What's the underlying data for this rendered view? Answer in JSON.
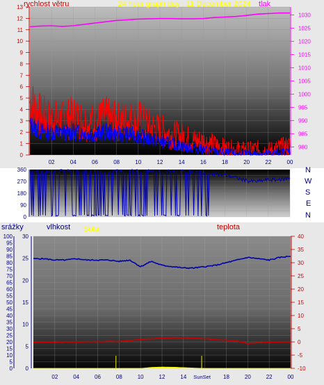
{
  "top_panel": {
    "title": "24 hour graph day : 11 December 2024",
    "left_label": "rychlost větru",
    "right_label": "tlak"
  },
  "mid_panel": {
    "compass": [
      "N",
      "W",
      "S",
      "E",
      "N"
    ]
  },
  "bottom_panel": {
    "labels": {
      "rain": "srážky",
      "humidity": "vlhkost",
      "solar": "Solar",
      "temp": "teplota"
    },
    "sun_marks": [
      "Sun",
      "Set"
    ]
  },
  "colors": {
    "speed": "#ff0000",
    "gust": "#ff0000",
    "speed_avg": "#0000ff",
    "pressure": "#ff00ff",
    "direction": "#0000aa",
    "humidity": "#0000aa",
    "temp": "#cc0000",
    "solar": "#ffff00",
    "title": "#ffff00"
  },
  "chart_data": [
    {
      "type": "line",
      "title": "24 hour graph day : 11 December 2024",
      "ylabel": "rychlost větru",
      "y2label": "tlak",
      "x_ticks": [
        "02",
        "04",
        "06",
        "08",
        "10",
        "12",
        "14",
        "16",
        "18",
        "20",
        "22",
        "00"
      ],
      "ylim": [
        0,
        13
      ],
      "y_ticks": [
        0,
        1,
        2,
        3,
        4,
        5,
        6,
        7,
        8,
        9,
        10,
        11,
        12,
        13
      ],
      "y2lim": [
        977,
        1033
      ],
      "y2_ticks": [
        980,
        985,
        990,
        995,
        1000,
        1005,
        1010,
        1015,
        1020,
        1025,
        1030
      ],
      "hours": [
        0,
        1,
        2,
        3,
        4,
        5,
        6,
        7,
        8,
        9,
        10,
        11,
        12,
        13,
        14,
        15,
        16,
        17,
        18,
        19,
        20,
        21,
        22,
        23,
        24
      ],
      "series": [
        {
          "name": "rychlost větru",
          "values": [
            4.6,
            3.4,
            3.1,
            3.0,
            3.3,
            3.0,
            2.8,
            3.3,
            2.9,
            3.0,
            3.1,
            2.5,
            2.2,
            1.8,
            1.6,
            1.3,
            1.2,
            0.9,
            0.6,
            0.5,
            0.4,
            0.5,
            0.4,
            0.6,
            0.8
          ]
        },
        {
          "name": "avg",
          "values": [
            2.6,
            2.1,
            2.0,
            1.9,
            2.0,
            1.9,
            1.8,
            2.0,
            1.8,
            1.8,
            1.7,
            1.4,
            1.2,
            1.0,
            0.8,
            0.6,
            0.5,
            0.3,
            0.2,
            0.1,
            0.1,
            0.1,
            0.1,
            0.2,
            0.3
          ]
        },
        {
          "name": "tlak",
          "values": [
            1025.5,
            1025.8,
            1025.9,
            1025.6,
            1025.9,
            1026.4,
            1026.9,
            1027.4,
            1027.9,
            1028.1,
            1028.4,
            1028.5,
            1028.6,
            1028.6,
            1028.5,
            1028.5,
            1028.6,
            1029.0,
            1029.2,
            1029.4,
            1029.8,
            1030.3,
            1030.5,
            1030.7,
            1030.7
          ]
        }
      ]
    },
    {
      "type": "line",
      "ylim": [
        0,
        360
      ],
      "y_ticks": [
        0,
        45,
        90,
        135,
        180,
        225,
        270,
        315,
        360
      ],
      "x_ticks": [
        "02",
        "04",
        "06",
        "08",
        "10",
        "12",
        "14",
        "16",
        "18",
        "20",
        "22",
        "00"
      ],
      "hours": [
        0,
        1,
        2,
        3,
        4,
        5,
        6,
        7,
        8,
        9,
        10,
        11,
        12,
        13,
        14,
        15,
        16,
        17,
        18,
        19,
        20,
        21,
        22,
        23,
        24
      ],
      "series": [
        {
          "name": "direction",
          "values": [
            350,
            345,
            340,
            355,
            350,
            345,
            350,
            340,
            350,
            345,
            350,
            350,
            345,
            350,
            345,
            340,
            330,
            325,
            320,
            300,
            275,
            270,
            285,
            280,
            300
          ]
        }
      ]
    },
    {
      "type": "line",
      "x_ticks": [
        "02",
        "04",
        "06",
        "08",
        "10",
        "12",
        "14",
        "16",
        "18",
        "20",
        "22",
        "00"
      ],
      "y_left_rain_ticks": [
        0,
        5,
        10,
        15,
        20,
        25,
        30,
        35,
        40,
        45,
        50,
        55,
        60,
        65,
        70,
        75,
        80,
        85,
        90,
        95,
        100
      ],
      "y_left_hum_ticks": [
        0,
        5,
        10,
        15,
        20,
        25,
        30
      ],
      "y_right_temp_ticks": [
        -10,
        -5,
        0,
        5,
        10,
        15,
        20,
        25,
        30,
        35,
        40
      ],
      "ylim_humidity": [
        0,
        100
      ],
      "ylim_temp": [
        -10,
        40
      ],
      "hours": [
        0,
        1,
        2,
        3,
        4,
        5,
        6,
        7,
        8,
        9,
        10,
        11,
        12,
        13,
        14,
        15,
        16,
        17,
        18,
        19,
        20,
        21,
        22,
        23,
        24
      ],
      "series": [
        {
          "name": "vlhkost",
          "values": [
            83,
            83,
            82,
            82,
            83,
            82,
            82,
            82,
            81,
            82,
            77,
            81,
            78,
            77,
            76,
            76,
            77,
            78,
            80,
            82,
            84,
            83,
            82,
            84,
            85
          ]
        },
        {
          "name": "teplota",
          "values": [
            -0.2,
            -0.1,
            -0.2,
            0,
            0,
            0.1,
            0.1,
            0.2,
            0.2,
            0.5,
            0.9,
            1.2,
            1.4,
            1.6,
            1.6,
            1.4,
            1.2,
            0.9,
            0.6,
            0.3,
            -0.6,
            -0.3,
            -0.1,
            0,
            0
          ]
        },
        {
          "name": "Solar",
          "values": [
            0,
            0,
            0,
            0,
            0,
            0,
            0,
            0,
            0,
            0,
            0,
            1.5,
            2.0,
            1.8,
            1.2,
            0.5,
            0,
            0,
            0,
            0,
            0,
            0,
            0,
            0,
            0
          ]
        }
      ],
      "sun_marks_hours": [
        7.7,
        15.7
      ]
    }
  ]
}
